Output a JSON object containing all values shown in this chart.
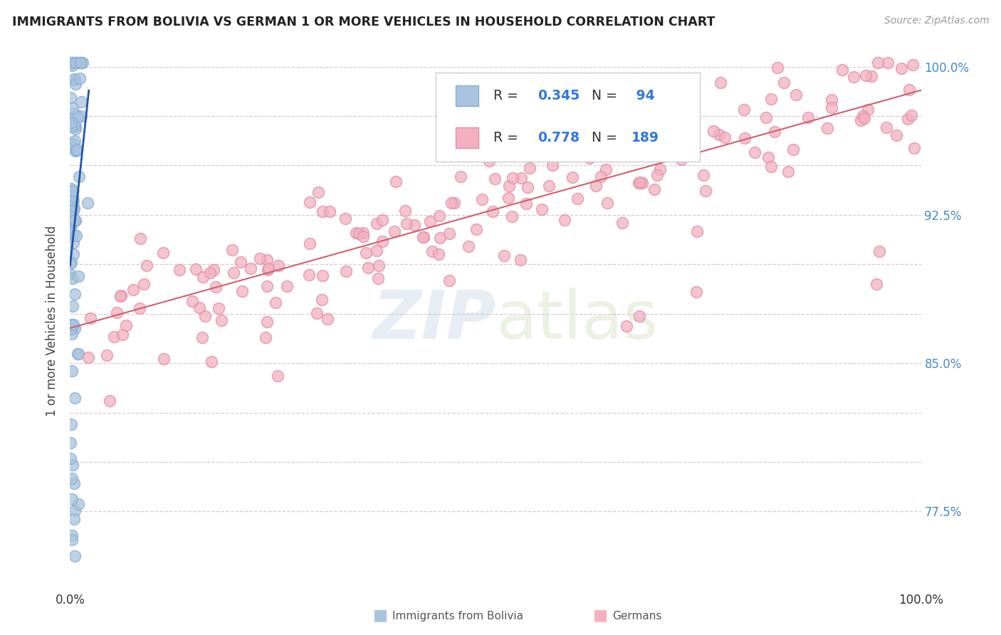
{
  "title": "IMMIGRANTS FROM BOLIVIA VS GERMAN 1 OR MORE VEHICLES IN HOUSEHOLD CORRELATION CHART",
  "source": "Source: ZipAtlas.com",
  "ylabel": "1 or more Vehicles in Household",
  "xlim": [
    0.0,
    1.0
  ],
  "ylim": [
    0.735,
    1.008
  ],
  "ytick_vals": [
    0.775,
    0.8,
    0.825,
    0.85,
    0.875,
    0.9,
    0.925,
    0.95,
    0.975,
    1.0
  ],
  "ytick_labels": [
    "77.5%",
    "",
    "",
    "85.0%",
    "",
    "",
    "92.5%",
    "",
    "",
    "100.0%"
  ],
  "bolivia_R": 0.345,
  "bolivia_N": 94,
  "german_R": 0.778,
  "german_N": 189,
  "bolivia_color": "#a8c4e0",
  "bolivia_edge_color": "#8ab0d0",
  "bolivia_line_color": "#2255aa",
  "german_color": "#f4b0c0",
  "german_edge_color": "#e090a8",
  "german_line_color": "#d06070",
  "watermark_zip": "ZIP",
  "watermark_atlas": "atlas",
  "grid_color": "#ddc8d8",
  "background": "#ffffff",
  "title_color": "#222222",
  "source_color": "#999999",
  "ylabel_color": "#444444",
  "tick_color": "#4488cc",
  "legend_border": "#cccccc",
  "legend_text_color": "#333333",
  "legend_val_color": "#3377dd",
  "bottom_legend_color": "#555555"
}
